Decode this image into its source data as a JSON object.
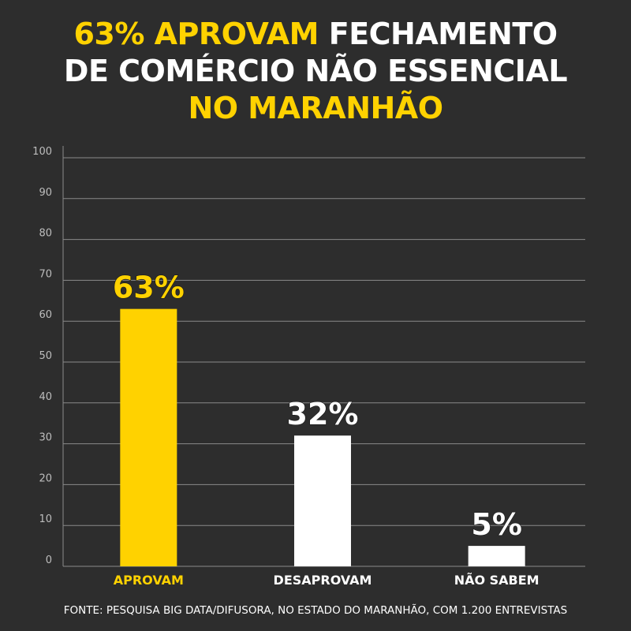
{
  "title": {
    "line1_highlight": "63% APROVAM",
    "line1_rest": " FECHAMENTO",
    "line2": "DE COMÉRCIO NÃO ESSENCIAL",
    "line3": "NO MARANHÃO"
  },
  "source": "FONTE: PESQUISA BIG DATA/DIFUSORA, NO ESTADO DO MARANHÃO, COM 1.200 ENTREVISTAS",
  "colors": {
    "background": "#2d2d2d",
    "highlight": "#ffd200",
    "bar_other": "#ffffff",
    "grid": "#8a8a8a",
    "tick_text": "#bdbdbd"
  },
  "chart_data": {
    "type": "bar",
    "title": "63% APROVAM FECHAMENTO DE COMÉRCIO NÃO ESSENCIAL NO MARANHÃO",
    "categories": [
      "APROVAM",
      "DESAPROVAM",
      "NÃO SABEM"
    ],
    "values": [
      63,
      32,
      5
    ],
    "data_labels": [
      "63%",
      "32%",
      "5%"
    ],
    "bar_colors": [
      "#ffd200",
      "#ffffff",
      "#ffffff"
    ],
    "label_colors": [
      "#ffd200",
      "#ffffff",
      "#ffffff"
    ],
    "yticks": [
      "0",
      "10",
      "20",
      "30",
      "40",
      "50",
      "60",
      "70",
      "80",
      "90",
      "100"
    ],
    "ylim": [
      0,
      100
    ],
    "grid": true,
    "legend": "none"
  }
}
